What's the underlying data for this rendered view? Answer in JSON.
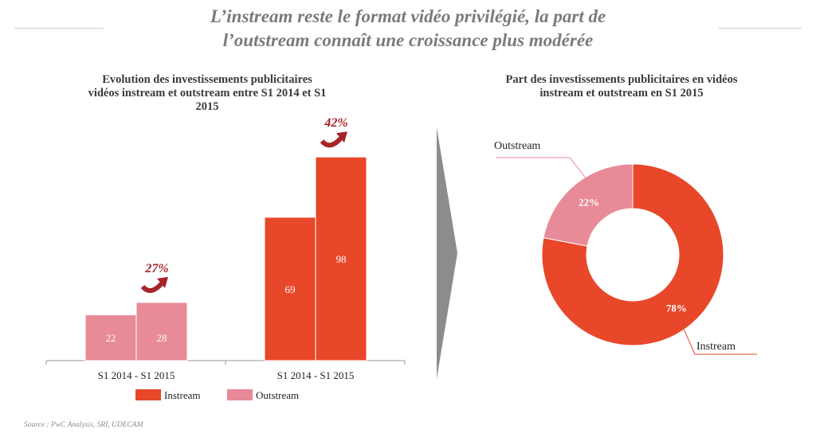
{
  "title_line1": "L’instream reste le format vidéo privilégié, la part de",
  "title_line2": "l’outstream connaît une croissance plus modérée",
  "source": "Source : PwC Analysis, SRI, UDECAM",
  "colors": {
    "instream": "#e8472a",
    "outstream": "#e88a97",
    "growth": "#a5242a",
    "arrow_divider": "#8c8c8c"
  },
  "chart_data": [
    {
      "type": "bar",
      "title": "Evolution des investissements publicitaires vidéos instream et outstream entre S1 2014 et S1 2015",
      "title_lines": [
        "Evolution des investissements publicitaires",
        "vidéos instream et outstream entre S1 2014 et S1",
        "2015"
      ],
      "ylim": [
        0,
        100
      ],
      "groups": [
        {
          "category": "S1 2014 - S1 2015",
          "series": "Outstream",
          "values": [
            22,
            28
          ],
          "growth": "27%"
        },
        {
          "category": "S1 2014 - S1 2015",
          "series": "Instream",
          "values": [
            69,
            98
          ],
          "growth": "42%"
        }
      ],
      "legend": [
        {
          "name": "Instream",
          "color": "#e8472a"
        },
        {
          "name": "Outstream",
          "color": "#e88a97"
        }
      ],
      "legend_position": "bottom"
    },
    {
      "type": "pie",
      "donut": true,
      "title": "Part des investissements publicitaires en vidéos instream et outstream en S1 2015",
      "title_lines": [
        "Part des investissements publicitaires en vidéos",
        "instream et outstream en S1 2015"
      ],
      "slices": [
        {
          "name": "Instream",
          "value": 78,
          "label": "78%",
          "color": "#e8472a"
        },
        {
          "name": "Outstream",
          "value": 22,
          "label": "22%",
          "color": "#e88a97"
        }
      ]
    }
  ]
}
